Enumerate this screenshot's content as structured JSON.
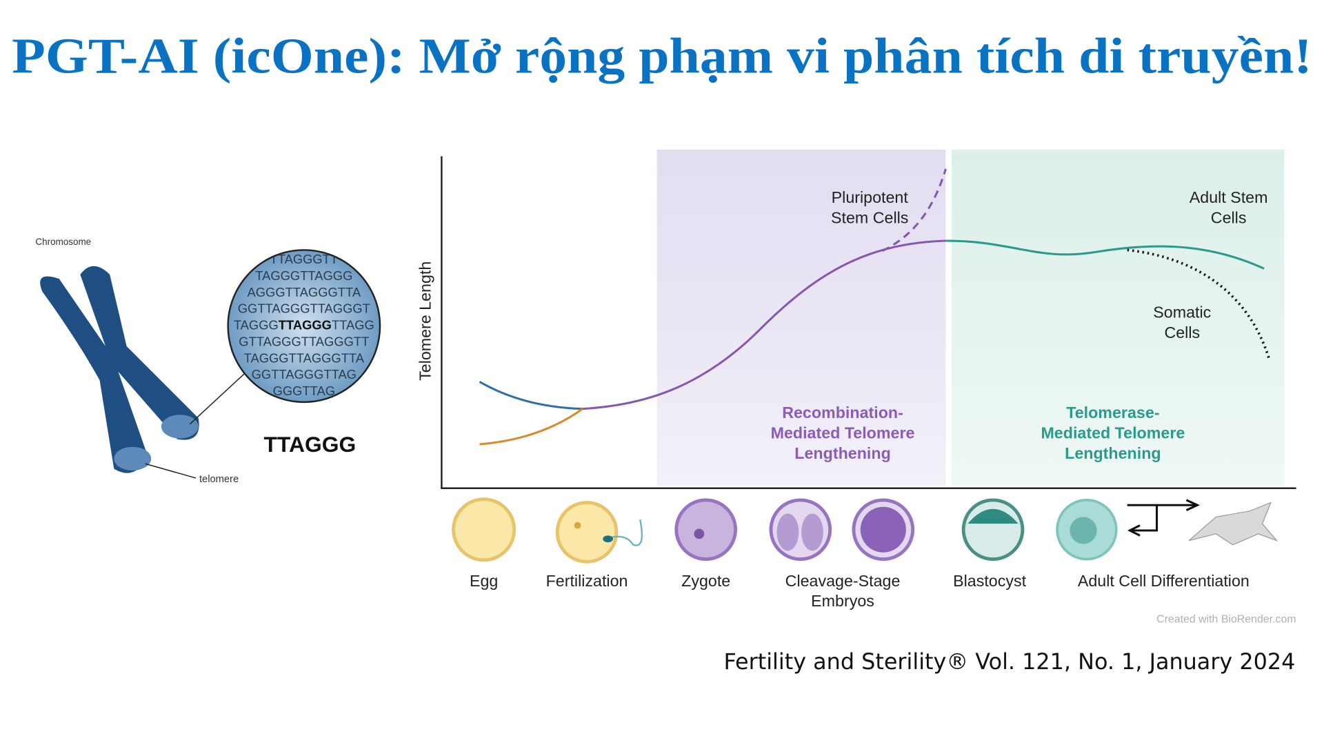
{
  "title": "PGT-AI (icOne): Mở rộng phạm vi phân tích di truyền!",
  "left_figure": {
    "chromosome_label": "Chromosome",
    "telomere_label": "telomere",
    "motif": "TTAGGG",
    "sequence_lines": [
      "TTAGGGTT",
      "TAGGGTTAGGG",
      "AGGGTTAGGGTTA",
      "GGTTAGGGTTAGGGT",
      [
        "TAGGG",
        "TTAGGG",
        "TTAGG"
      ],
      "GTTAGGGTTAGGGTT",
      "TAGGGTTAGGGTTA",
      "GGTTAGGGTTAG",
      "GGGTTAG"
    ]
  },
  "diagram": {
    "y_axis_label": "Telomere Length",
    "curve_labels": {
      "pluripotent": [
        "Pluripotent",
        "Stem Cells"
      ],
      "adult_stem": [
        "Adult Stem",
        "Cells"
      ],
      "somatic": [
        "Somatic",
        "Cells"
      ]
    },
    "regions": [
      [
        "Recombination-",
        "Mediated Telomere",
        "Lengthening"
      ],
      [
        "Telomerase-",
        "Mediated Telomere",
        "Lengthening"
      ]
    ],
    "stages": [
      [
        "Egg"
      ],
      [
        "Fertilization"
      ],
      [
        "Zygote"
      ],
      [
        "Cleavage-Stage",
        "Embryos"
      ],
      [
        "Blastocyst"
      ],
      [
        "Adult Cell Differentiation"
      ]
    ],
    "credit": "Created with BioRender.com"
  },
  "citation": "Fertility and Sterility® Vol. 121, No. 1, January 2024"
}
